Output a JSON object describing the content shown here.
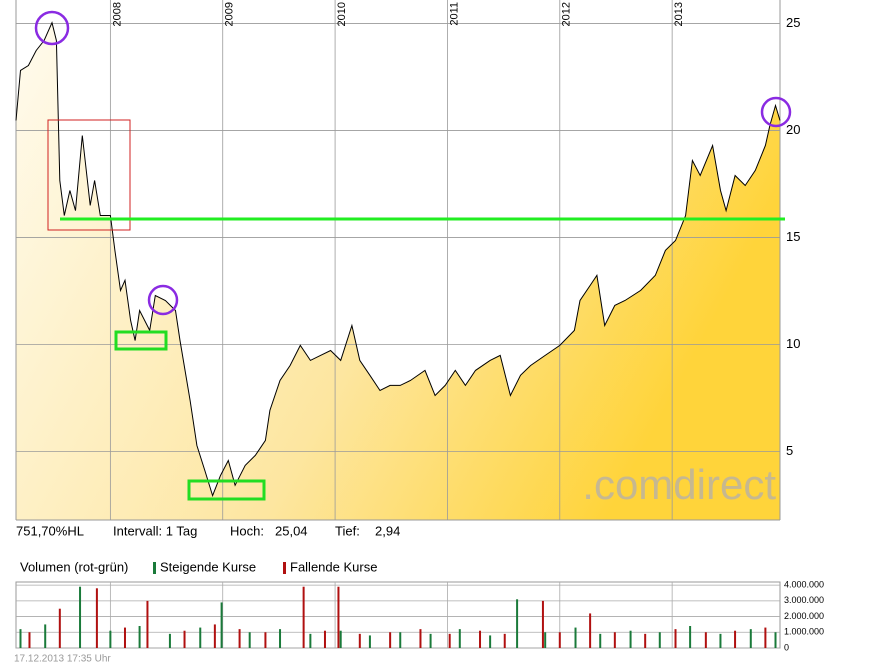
{
  "chart_data": [
    {
      "type": "area",
      "x": [
        2007.16,
        2007.2,
        2007.27,
        2007.34,
        2007.41,
        2007.48,
        2007.52,
        2007.55,
        2007.59,
        2007.64,
        2007.69,
        2007.75,
        2007.78,
        2007.82,
        2007.86,
        2007.91,
        2008.0,
        2008.04,
        2008.09,
        2008.13,
        2008.18,
        2008.22,
        2008.26,
        2008.35,
        2008.4,
        2008.49,
        2008.58,
        2008.62,
        2008.71,
        2008.77,
        2008.84,
        2008.91,
        2008.98,
        2009.05,
        2009.11,
        2009.2,
        2009.29,
        2009.38,
        2009.42,
        2009.51,
        2009.6,
        2009.69,
        2009.78,
        2009.87,
        2009.96,
        2010.05,
        2010.15,
        2010.22,
        2010.31,
        2010.4,
        2010.49,
        2010.58,
        2010.67,
        2010.8,
        2010.89,
        2010.98,
        2011.07,
        2011.16,
        2011.25,
        2011.38,
        2011.47,
        2011.56,
        2011.65,
        2011.74,
        2011.87,
        2012.0,
        2012.13,
        2012.18,
        2012.27,
        2012.33,
        2012.4,
        2012.49,
        2012.58,
        2012.72,
        2012.85,
        2012.94,
        2013.03,
        2013.12,
        2013.18,
        2013.25,
        2013.36,
        2013.43,
        2013.48,
        2013.56,
        2013.65,
        2013.74,
        2013.83,
        2013.87,
        2013.92,
        2013.96
      ],
      "series": [
        {
          "color": "#000000",
          "values": [
            20.47,
            22.81,
            23.04,
            23.74,
            24.21,
            25.04,
            24.21,
            17.67,
            16.03,
            17.2,
            16.26,
            19.77,
            18.37,
            16.5,
            17.67,
            16.03,
            16.03,
            14.4,
            12.53,
            13.0,
            11.13,
            10.19,
            11.59,
            10.66,
            12.29,
            12.06,
            11.59,
            10.19,
            7.39,
            5.28,
            4.12,
            2.94,
            3.88,
            4.58,
            3.42,
            4.35,
            4.82,
            5.52,
            6.92,
            8.32,
            9.02,
            9.96,
            9.26,
            9.49,
            9.72,
            9.26,
            10.89,
            9.26,
            8.56,
            7.85,
            8.09,
            8.09,
            8.32,
            8.79,
            7.62,
            8.09,
            8.79,
            8.09,
            8.79,
            9.26,
            9.49,
            7.62,
            8.56,
            9.02,
            9.49,
            9.96,
            10.66,
            12.06,
            12.76,
            13.23,
            10.89,
            11.83,
            12.06,
            12.53,
            13.23,
            14.4,
            14.86,
            16.03,
            18.6,
            17.9,
            19.3,
            17.2,
            16.26,
            17.9,
            17.43,
            18.14,
            19.3,
            20.24,
            21.17,
            20.47
          ]
        }
      ],
      "xlim": [
        2007.16,
        2013.96
      ],
      "xticks": [
        2008,
        2009,
        2010,
        2011,
        2012,
        2013
      ],
      "ylim": [
        1.8,
        25.4
      ],
      "yticks": [
        5,
        10,
        15,
        20,
        25
      ],
      "grid": true,
      "watermark": ".comdirect"
    },
    {
      "type": "bar",
      "title": "Volumen (rot-grün)",
      "series": [
        {
          "name": "Steigende Kurse",
          "color": "#1a7a3a",
          "x": [
            2007.2,
            2007.42,
            2007.73,
            2008.0,
            2008.26,
            2008.53,
            2008.8,
            2008.99,
            2009.24,
            2009.51,
            2009.78,
            2010.05,
            2010.31,
            2010.58,
            2010.85,
            2011.11,
            2011.38,
            2011.62,
            2011.87,
            2012.14,
            2012.36,
            2012.63,
            2012.89,
            2013.16,
            2013.43,
            2013.7,
            2013.92
          ],
          "values": [
            1200000,
            1500000,
            3900000,
            1100000,
            1400000,
            900000,
            1300000,
            2900000,
            1000000,
            1200000,
            900000,
            1100000,
            800000,
            1000000,
            900000,
            1200000,
            800000,
            3100000,
            1000000,
            1300000,
            900000,
            1100000,
            1000000,
            1400000,
            900000,
            1200000,
            1000000
          ]
        },
        {
          "name": "Fallende Kurse",
          "color": "#b01010",
          "x": [
            2007.28,
            2007.55,
            2007.88,
            2008.13,
            2008.33,
            2008.66,
            2008.93,
            2009.15,
            2009.38,
            2009.72,
            2009.91,
            2010.03,
            2010.22,
            2010.49,
            2010.76,
            2011.02,
            2011.29,
            2011.51,
            2011.85,
            2012.0,
            2012.27,
            2012.49,
            2012.76,
            2013.03,
            2013.3,
            2013.56,
            2013.83
          ],
          "values": [
            1000000,
            2500000,
            3800000,
            1300000,
            3000000,
            1100000,
            1500000,
            1200000,
            1000000,
            3900000,
            1100000,
            3900000,
            900000,
            1000000,
            1200000,
            900000,
            1100000,
            900000,
            3000000,
            1000000,
            2200000,
            1000000,
            900000,
            1200000,
            1000000,
            1100000,
            1300000
          ]
        }
      ],
      "xlim": [
        2007.16,
        2013.96
      ],
      "ylim": [
        0,
        4200000
      ],
      "yticks": [
        0,
        {
          "value": 1000000,
          "label": "1.000.000"
        },
        {
          "value": 2000000,
          "label": "2.000.000"
        },
        {
          "value": 3000000,
          "label": "3.000.000"
        },
        {
          "value": 4000000,
          "label": "4.000.000"
        }
      ],
      "grid": true
    }
  ],
  "info": {
    "performance": "751,70%HL",
    "interval": "Intervall: 1 Tag",
    "high_label": "Hoch:",
    "high": "25,04",
    "low_label": "Tief:",
    "low": "2,94"
  },
  "timestamp": "17.12.2013 17:35 Uhr"
}
